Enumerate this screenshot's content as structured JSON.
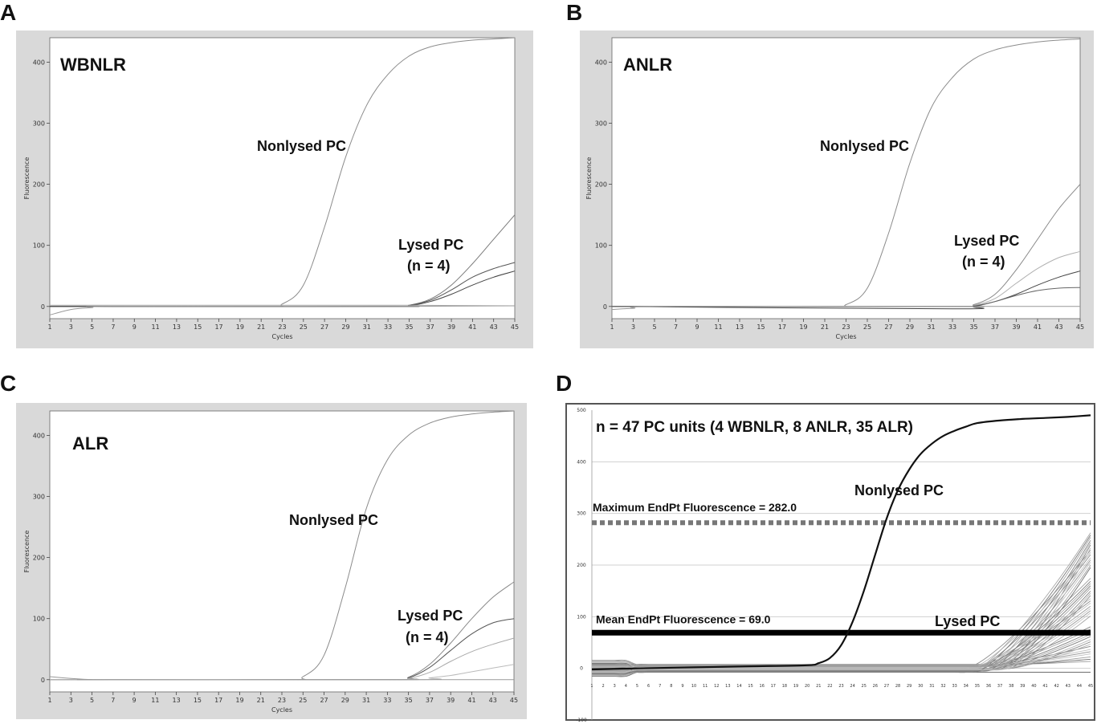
{
  "panel_letters": [
    "A",
    "B",
    "C",
    "D"
  ],
  "chart_data": [
    {
      "panel": "A",
      "type": "line",
      "title": "WBNLR",
      "xlabel": "Cycles",
      "ylabel": "Fluorescence",
      "xlim": [
        1,
        45
      ],
      "ylim": [
        -20,
        440
      ],
      "xticks": [
        1,
        3,
        5,
        7,
        9,
        11,
        13,
        15,
        17,
        19,
        21,
        23,
        25,
        27,
        29,
        31,
        33,
        35,
        37,
        39,
        41,
        43,
        45
      ],
      "yticks": [
        0,
        100,
        200,
        300,
        400
      ],
      "annotations": [
        {
          "text": "Nonlysed PC",
          "x": 28,
          "y": 262
        },
        {
          "text": "Lysed PC",
          "x": 38.8,
          "y": 100
        },
        {
          "text": "(n = 4)",
          "x": 38.8,
          "y": 68
        }
      ],
      "series": [
        {
          "color": "#8c8c8c",
          "x": [
            1,
            21,
            23,
            25,
            27,
            29,
            31,
            33,
            35,
            37,
            39,
            41,
            43,
            45
          ],
          "y": [
            0,
            0,
            4,
            35,
            130,
            245,
            330,
            380,
            410,
            425,
            432,
            436,
            438,
            440
          ]
        },
        {
          "color": "#7a7a7a",
          "x": [
            1,
            33,
            35,
            37,
            39,
            41,
            43,
            45
          ],
          "y": [
            0,
            0,
            2,
            12,
            35,
            70,
            110,
            150
          ]
        },
        {
          "color": "#555555",
          "x": [
            1,
            33,
            35,
            37,
            39,
            41,
            43,
            45
          ],
          "y": [
            0,
            0,
            2,
            10,
            27,
            48,
            62,
            72
          ]
        },
        {
          "color": "#444444",
          "x": [
            1,
            33,
            35,
            37,
            39,
            41,
            43,
            45
          ],
          "y": [
            0,
            0,
            1,
            8,
            20,
            35,
            48,
            58
          ]
        },
        {
          "color": "#aaaaaa",
          "x": [
            1,
            35,
            45
          ],
          "y": [
            2,
            2,
            1
          ]
        },
        {
          "color": "#999999",
          "x": [
            1,
            3,
            5,
            7,
            33,
            45
          ],
          "y": [
            -14,
            -5,
            -2,
            0,
            0,
            1
          ]
        }
      ]
    },
    {
      "panel": "B",
      "type": "line",
      "title": "ANLR",
      "xlabel": "Cycles",
      "ylabel": "Fluorescence",
      "xlim": [
        1,
        45
      ],
      "ylim": [
        -20,
        440
      ],
      "xticks": [
        1,
        3,
        5,
        7,
        9,
        11,
        13,
        15,
        17,
        19,
        21,
        23,
        25,
        27,
        29,
        31,
        33,
        35,
        37,
        39,
        41,
        43,
        45
      ],
      "yticks": [
        0,
        100,
        200,
        300,
        400
      ],
      "annotations": [
        {
          "text": "Nonlysed PC",
          "x": 26.5,
          "y": 262
        },
        {
          "text": "Lysed PC",
          "x": 37.5,
          "y": 105
        },
        {
          "text": "(n = 4)",
          "x": 37.5,
          "y": 73
        }
      ],
      "series": [
        {
          "color": "#8c8c8c",
          "x": [
            1,
            21,
            23,
            25,
            27,
            29,
            31,
            33,
            35,
            37,
            39,
            41,
            43,
            45
          ],
          "y": [
            0,
            0,
            3,
            30,
            120,
            235,
            325,
            375,
            405,
            420,
            428,
            433,
            436,
            438
          ]
        },
        {
          "color": "#888888",
          "x": [
            1,
            33,
            35,
            37,
            39,
            41,
            43,
            45
          ],
          "y": [
            0,
            0,
            3,
            20,
            60,
            110,
            160,
            200
          ]
        },
        {
          "color": "#b0b0b0",
          "x": [
            1,
            33,
            35,
            37,
            39,
            41,
            43,
            45
          ],
          "y": [
            0,
            0,
            2,
            13,
            38,
            62,
            80,
            90
          ]
        },
        {
          "color": "#444444",
          "x": [
            1,
            33,
            35,
            37,
            39,
            41,
            43,
            45
          ],
          "y": [
            0,
            -4,
            0,
            8,
            20,
            35,
            48,
            58
          ]
        },
        {
          "color": "#666666",
          "x": [
            1,
            33,
            35,
            37,
            39,
            41,
            43,
            45
          ],
          "y": [
            0,
            0,
            1,
            8,
            18,
            26,
            30,
            31
          ]
        },
        {
          "color": "#999999",
          "x": [
            1,
            3,
            7,
            45
          ],
          "y": [
            -5,
            -3,
            0,
            0
          ]
        }
      ]
    },
    {
      "panel": "C",
      "type": "line",
      "title": "ALR",
      "xlabel": "Cycles",
      "ylabel": "Fluorescence",
      "xlim": [
        1,
        45
      ],
      "ylim": [
        -20,
        440
      ],
      "xticks": [
        1,
        3,
        5,
        7,
        9,
        11,
        13,
        15,
        17,
        19,
        21,
        23,
        25,
        27,
        29,
        31,
        33,
        35,
        37,
        39,
        41,
        43,
        45
      ],
      "yticks": [
        0,
        100,
        200,
        300,
        400
      ],
      "annotations": [
        {
          "text": "Nonlysed PC",
          "x": 29.5,
          "y": 255
        },
        {
          "text": "Lysed PC",
          "x": 38.8,
          "y": 100
        },
        {
          "text": "(n = 4)",
          "x": 38.8,
          "y": 67
        }
      ],
      "series": [
        {
          "color": "#8c8c8c",
          "x": [
            1,
            23,
            25,
            27,
            29,
            31,
            33,
            35,
            37,
            39,
            41,
            43,
            45
          ],
          "y": [
            0,
            0,
            5,
            40,
            150,
            280,
            360,
            400,
            420,
            430,
            435,
            438,
            440
          ]
        },
        {
          "color": "#888888",
          "x": [
            1,
            33,
            35,
            37,
            39,
            41,
            43,
            45
          ],
          "y": [
            0,
            0,
            4,
            25,
            60,
            100,
            135,
            160
          ]
        },
        {
          "color": "#555555",
          "x": [
            1,
            33,
            35,
            37,
            39,
            41,
            43,
            45
          ],
          "y": [
            0,
            0,
            3,
            20,
            48,
            75,
            93,
            100
          ]
        },
        {
          "color": "#aaaaaa",
          "x": [
            1,
            33,
            35,
            37,
            39,
            41,
            43,
            45
          ],
          "y": [
            0,
            0,
            2,
            12,
            30,
            46,
            58,
            68
          ]
        },
        {
          "color": "#bbbbbb",
          "x": [
            1,
            35,
            37,
            39,
            41,
            43,
            45
          ],
          "y": [
            0,
            0,
            3,
            7,
            13,
            19,
            25
          ]
        },
        {
          "color": "#999999",
          "x": [
            1,
            3,
            5,
            7,
            45
          ],
          "y": [
            5,
            2,
            0,
            0,
            0
          ]
        }
      ]
    },
    {
      "panel": "D",
      "type": "line",
      "title": "n =  47 PC units (4 WBNLR, 8 ANLR, 35 ALR)",
      "xlabel": "",
      "ylabel": "",
      "xlim": [
        1,
        45
      ],
      "ylim": [
        -100,
        500
      ],
      "xticks": [
        1,
        2,
        3,
        4,
        5,
        6,
        7,
        8,
        9,
        10,
        11,
        12,
        13,
        14,
        15,
        16,
        17,
        18,
        19,
        20,
        21,
        22,
        23,
        24,
        25,
        26,
        27,
        28,
        29,
        30,
        31,
        32,
        33,
        34,
        35,
        36,
        37,
        38,
        39,
        40,
        41,
        42,
        43,
        44,
        45
      ],
      "yticks": [
        -100,
        0,
        100,
        200,
        300,
        400,
        500
      ],
      "annotations": [
        {
          "text": "Nonlysed PC",
          "x": 29.5,
          "y": 415
        },
        {
          "text": "Lysed PC",
          "x": 37.5,
          "y": 105
        }
      ],
      "reference_lines": [
        {
          "label": "Maximum EndPt Fluorescence = 282.0",
          "y": 282.0,
          "style": "dotted"
        },
        {
          "label": "Mean EndPt Fluorescence = 69.0",
          "y": 69.0,
          "style": "solid"
        }
      ],
      "series": [
        {
          "color": "#111111",
          "x": [
            1,
            5,
            10,
            15,
            20,
            21,
            22,
            23,
            24,
            25,
            26,
            27,
            28,
            29,
            30,
            31,
            32,
            33,
            34,
            35,
            37,
            39,
            41,
            43,
            45
          ],
          "y": [
            -2,
            0,
            2,
            4,
            6,
            10,
            20,
            45,
            90,
            150,
            220,
            290,
            345,
            385,
            415,
            435,
            450,
            460,
            468,
            475,
            480,
            483,
            485,
            487,
            490
          ]
        }
      ],
      "lysed_band": {
        "count": 47,
        "end_min": 0,
        "end_max": 270,
        "onset_cycle_min": 34,
        "onset_cycle_max": 38
      }
    }
  ]
}
